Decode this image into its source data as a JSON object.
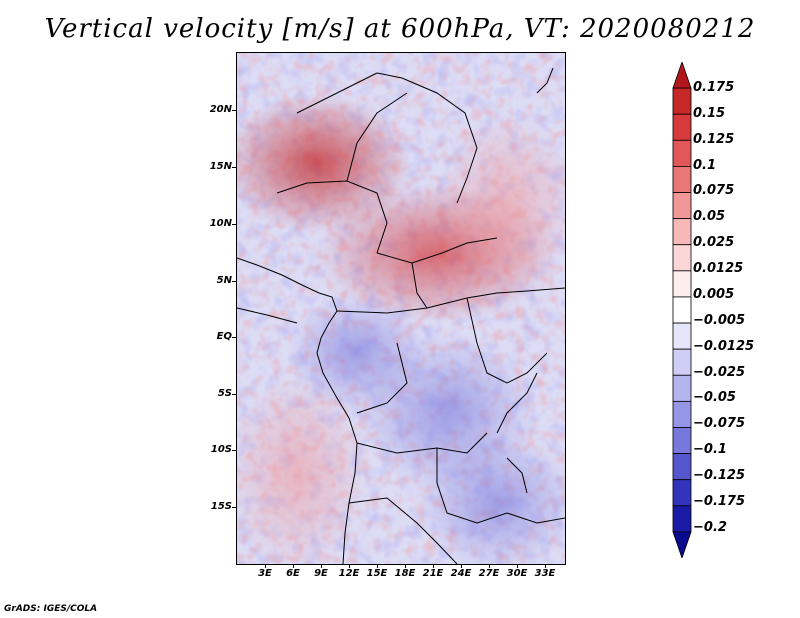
{
  "title": "Vertical velocity [m/s] at 600hPa, VT: 2020080212",
  "credit": "GrADS: IGES/COLA",
  "map": {
    "lat_labels": [
      "20N",
      "15N",
      "10N",
      "5N",
      "EQ",
      "5S",
      "10S",
      "15S"
    ],
    "lon_labels": [
      "3E",
      "6E",
      "9E",
      "12E",
      "15E",
      "18E",
      "21E",
      "24E",
      "27E",
      "30E",
      "33E"
    ],
    "lon_range": [
      0,
      35
    ],
    "lat_range": [
      -20,
      25
    ]
  },
  "colorbar": {
    "labels": [
      "0.175",
      "0.15",
      "0.125",
      "0.1",
      "0.075",
      "0.05",
      "0.025",
      "0.0125",
      "0.005",
      "−0.005",
      "−0.0125",
      "−0.025",
      "−0.05",
      "−0.075",
      "−0.1",
      "−0.125",
      "−0.175",
      "−0.2"
    ],
    "colors": [
      "#b2181b",
      "#c62828",
      "#d63a3a",
      "#e25858",
      "#ea7777",
      "#f29797",
      "#f7b8b8",
      "#fbd6d6",
      "#fdeeee",
      "#ffffff",
      "#e6e6fa",
      "#cfcff5",
      "#b3b3ee",
      "#9696e6",
      "#7777dc",
      "#5555cc",
      "#3333bb",
      "#1a1aa6",
      "#0a0a8f"
    ]
  }
}
